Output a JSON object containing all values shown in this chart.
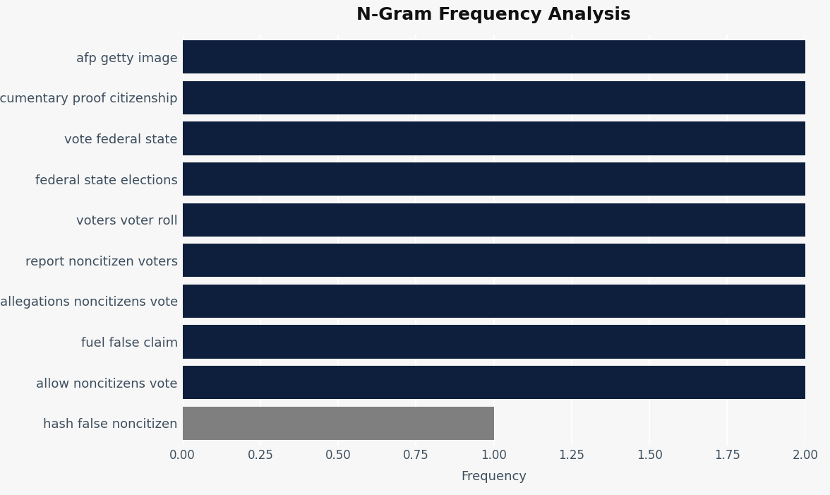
{
  "title": "N-Gram Frequency Analysis",
  "categories": [
    "hash false noncitizen",
    "allow noncitizens vote",
    "fuel false claim",
    "allegations noncitizens vote",
    "report noncitizen voters",
    "voters voter roll",
    "federal state elections",
    "vote federal state",
    "documentary proof citizenship",
    "afp getty image"
  ],
  "values": [
    1,
    2,
    2,
    2,
    2,
    2,
    2,
    2,
    2,
    2
  ],
  "bar_colors": [
    "#7f7f7f",
    "#0d1f3c",
    "#0d1f3c",
    "#0d1f3c",
    "#0d1f3c",
    "#0d1f3c",
    "#0d1f3c",
    "#0d1f3c",
    "#0d1f3c",
    "#0d1f3c"
  ],
  "xlabel": "Frequency",
  "ylabel": "",
  "xlim": [
    0,
    2.0
  ],
  "xticks": [
    0.0,
    0.25,
    0.5,
    0.75,
    1.0,
    1.25,
    1.5,
    1.75,
    2.0
  ],
  "xtick_labels": [
    "0.00",
    "0.25",
    "0.50",
    "0.75",
    "1.00",
    "1.25",
    "1.50",
    "1.75",
    "2.00"
  ],
  "title_fontsize": 18,
  "label_fontsize": 13,
  "tick_fontsize": 12,
  "background_color": "#f7f7f7",
  "plot_bg_color": "#f7f7f7",
  "label_color": "#3d4e5e",
  "bar_height": 0.82
}
